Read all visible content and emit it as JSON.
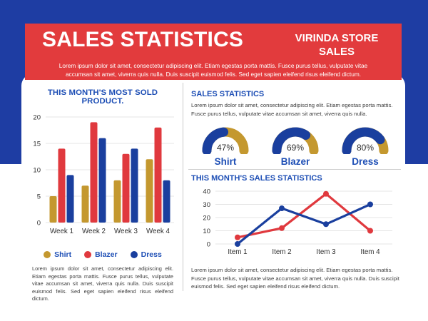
{
  "colors": {
    "background_blue": "#1e3da3",
    "banner_red": "#e23b3d",
    "title_blue": "#1d4eb5",
    "gold": "#c4982f",
    "red": "#e0393e",
    "blue": "#1a3f9e"
  },
  "header": {
    "title": "SALES STATISTICS",
    "brand": "VIRINDA STORE SALES",
    "description": "Lorem ipsum dolor sit amet, consectetur adipiscing elit. Etiam egestas porta mattis. Fusce purus tellus, vulputate vitae accumsan sit amet, viverra quis nulla. Duis suscipit euismod felis. Sed eget sapien eleifend risus eleifend dictum."
  },
  "left_panel": {
    "description": "Lorem ipsum dolor sit amet, consectetur adipiscing elit. Etiam egestas porta mattis. Fusce purus tellus, vulputate vitae accumsan sit amet, viverra quis nulla. Duis suscipit euismod felis. Sed eget sapien eleifend risus eleifend dictum."
  },
  "right_top_panel": {
    "title": "SALES STATISTICS",
    "description": "Lorem ipsum dolor sit amet, consectetur adipiscing elit. Etiam egestas porta mattis. Fusce purus tellus, vulputate vitae accumsan sit amet, viverra quis nulla."
  },
  "right_bottom_panel": {
    "description": "Lorem ipsum dolor sit amet, consectetur adipiscing elit. Etiam egestas porta mattis. Fusce purus tellus, vulputate vitae accumsan sit amet, viverra quis nulla. Duis suscipit euismod felis. Sed eget sapien eleifend risus eleifend dictum."
  },
  "chart_data": [
    {
      "id": "weekly-bar",
      "type": "bar",
      "title": "THIS MONTH'S MOST SOLD PRODUCT.",
      "categories": [
        "Week 1",
        "Week 2",
        "Week 3",
        "Week 4"
      ],
      "series": [
        {
          "name": "Shirt",
          "color": "#c4982f",
          "values": [
            5,
            7,
            8,
            12
          ]
        },
        {
          "name": "Blazer",
          "color": "#e0393e",
          "values": [
            14,
            19,
            13,
            18
          ]
        },
        {
          "name": "Dress",
          "color": "#1a3f9e",
          "values": [
            9,
            16,
            14,
            8
          ]
        }
      ],
      "xlabel": "",
      "ylabel": "",
      "ylim": [
        0,
        20
      ],
      "ytick_step": 5,
      "grid": true,
      "legend_position": "bottom"
    },
    {
      "id": "share-gauges",
      "type": "gauge",
      "items": [
        {
          "label": "Shirt",
          "percent": 47
        },
        {
          "label": "Blazer",
          "percent": 69
        },
        {
          "label": "Dress",
          "percent": 80
        }
      ],
      "fill_color": "#1a3f9e",
      "track_color": "#c4982f"
    },
    {
      "id": "items-line",
      "type": "line",
      "title": "THIS MONTH'S SALES STATISTICS",
      "categories": [
        "Item 1",
        "Item 2",
        "Item 3",
        "Item 4"
      ],
      "series": [
        {
          "name": "series-red",
          "color": "#e0393e",
          "values": [
            5,
            12,
            38,
            10
          ]
        },
        {
          "name": "series-blue",
          "color": "#1a3f9e",
          "values": [
            0,
            27,
            15,
            30
          ]
        }
      ],
      "xlabel": "",
      "ylabel": "",
      "ylim": [
        0,
        40
      ],
      "ytick_step": 10,
      "grid": true,
      "legend_position": "none"
    }
  ]
}
